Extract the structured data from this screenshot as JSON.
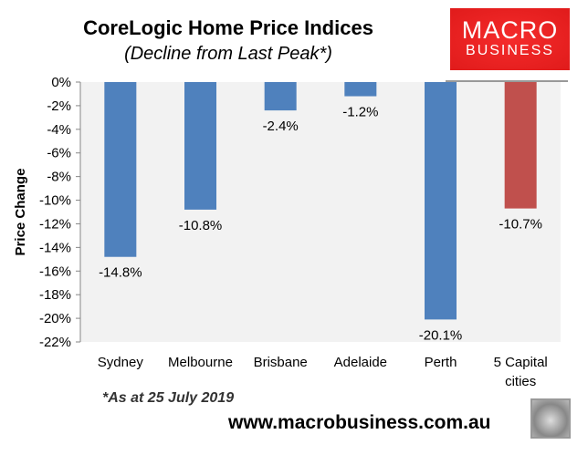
{
  "chart_data": {
    "type": "bar",
    "title": "CoreLogic Home Price Indices",
    "subtitle": "(Decline from Last Peak*)",
    "ylabel": "Price Change",
    "xlabel": "",
    "categories": [
      "Sydney",
      "Melbourne",
      "Brisbane",
      "Adelaide",
      "Perth",
      "5 Capital cities"
    ],
    "values": [
      -14.8,
      -10.8,
      -2.4,
      -1.2,
      -20.1,
      -10.7
    ],
    "data_labels": [
      "-14.8%",
      "-10.8%",
      "-2.4%",
      "-1.2%",
      "-20.1%",
      "-10.7%"
    ],
    "colors": [
      "#4f81bd",
      "#4f81bd",
      "#4f81bd",
      "#4f81bd",
      "#4f81bd",
      "#c0504d"
    ],
    "ylim": [
      -22,
      0
    ],
    "yticks": [
      "0%",
      "-2%",
      "-4%",
      "-6%",
      "-8%",
      "-10%",
      "-12%",
      "-14%",
      "-16%",
      "-18%",
      "-20%",
      "-22%"
    ],
    "grid": false,
    "plot_background": "#f2f2f2"
  },
  "footer": {
    "note": "*As at 25 July 2019",
    "url": "www.macrobusiness.com.au"
  },
  "logo": {
    "line1": "MACRO",
    "line2": "BUSINESS",
    "color": "#e82222"
  },
  "icons": {
    "mascot": "wolf-head-icon"
  }
}
